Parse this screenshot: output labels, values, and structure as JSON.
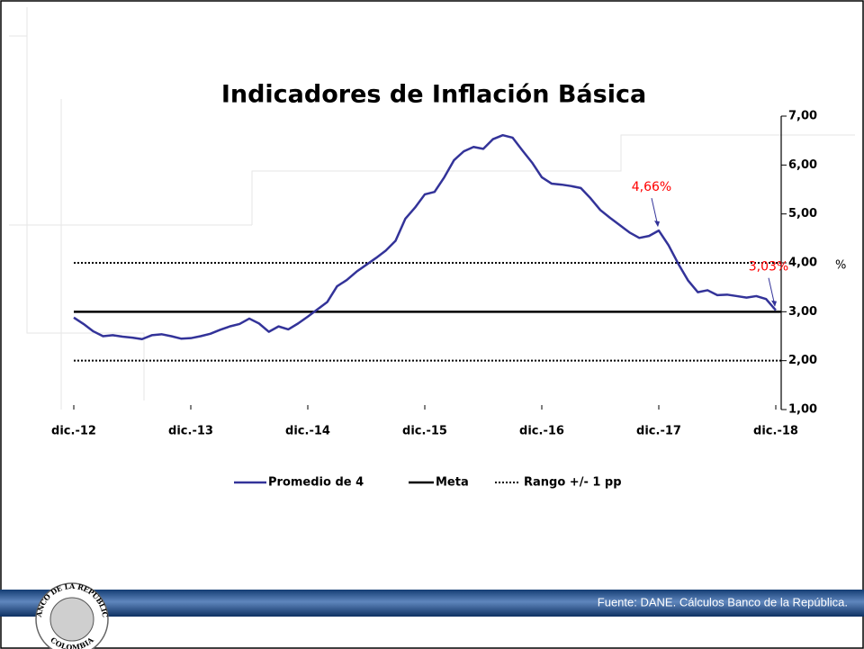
{
  "chart_data": {
    "type": "line",
    "title": "Indicadores de Inflación Básica",
    "y_unit": "%",
    "categories": [
      "dic.-12",
      null,
      null,
      null,
      null,
      null,
      null,
      null,
      null,
      null,
      null,
      null,
      "dic.-13",
      null,
      null,
      null,
      null,
      null,
      null,
      null,
      null,
      null,
      null,
      null,
      "dic.-14",
      null,
      null,
      null,
      null,
      null,
      null,
      null,
      null,
      null,
      null,
      null,
      "dic.-15",
      null,
      null,
      null,
      null,
      null,
      null,
      null,
      null,
      null,
      null,
      null,
      "dic.-16",
      null,
      null,
      null,
      null,
      null,
      null,
      null,
      null,
      null,
      null,
      null,
      "dic.-17",
      null,
      null,
      null,
      null,
      null,
      null,
      null,
      null,
      null,
      null,
      null,
      "dic.-18"
    ],
    "series": [
      {
        "name": "Promedio de 4",
        "color": "#333399",
        "values": [
          2.88,
          2.75,
          2.6,
          2.5,
          2.52,
          2.49,
          2.47,
          2.44,
          2.52,
          2.54,
          2.5,
          2.45,
          2.46,
          2.5,
          2.55,
          2.63,
          2.7,
          2.75,
          2.86,
          2.76,
          2.59,
          2.7,
          2.64,
          2.76,
          2.9,
          3.05,
          3.2,
          3.52,
          3.65,
          3.82,
          3.96,
          4.1,
          4.25,
          4.45,
          4.9,
          5.13,
          5.4,
          5.45,
          5.75,
          6.1,
          6.28,
          6.37,
          6.33,
          6.53,
          6.61,
          6.56,
          6.3,
          6.05,
          5.75,
          5.62,
          5.6,
          5.57,
          5.53,
          5.32,
          5.08,
          4.92,
          4.77,
          4.62,
          4.51,
          4.55,
          4.66,
          4.36,
          3.98,
          3.64,
          3.4,
          3.44,
          3.34,
          3.35,
          3.32,
          3.29,
          3.32,
          3.26,
          3.03
        ],
        "value_labels": [
          null,
          null,
          null,
          null,
          null,
          null,
          null,
          null,
          null,
          null,
          null,
          null,
          null,
          null,
          null,
          null,
          null,
          null,
          null,
          null,
          null,
          null,
          null,
          null,
          null,
          null,
          null,
          null,
          null,
          null,
          null,
          null,
          null,
          null,
          null,
          null,
          null,
          null,
          null,
          null,
          null,
          null,
          null,
          null,
          null,
          null,
          null,
          null,
          null,
          null,
          null,
          null,
          null,
          null,
          null,
          null,
          null,
          null,
          null,
          null,
          "4,66%",
          null,
          null,
          null,
          null,
          null,
          null,
          null,
          null,
          null,
          null,
          null,
          "3,03%"
        ],
        "label_color": "#ff0000"
      }
    ],
    "reference_lines": [
      {
        "name": "Meta",
        "value": 3,
        "color": "#000000",
        "style": "solid"
      },
      {
        "name": "Rango +/- 1 pp",
        "values": [
          2,
          4
        ],
        "color": "#000000",
        "style": "dotted"
      }
    ],
    "ylim": [
      1,
      7
    ],
    "yticks": [
      {
        "value": 1,
        "label": "1,00"
      },
      {
        "value": 2,
        "label": "2,00"
      },
      {
        "value": 3,
        "label": "3,00"
      },
      {
        "value": 4,
        "label": "4,00"
      },
      {
        "value": 5,
        "label": "5,00"
      },
      {
        "value": 6,
        "label": "6,00"
      },
      {
        "value": 7,
        "label": "7,00"
      }
    ],
    "y_axis_side": "right",
    "grid": false
  },
  "footer": {
    "source": "Fuente: DANE. Cálculos Banco de la República."
  },
  "logo": {
    "top": "BANCO DE LA REPUBLICA",
    "bottom": "COLOMBIA"
  }
}
